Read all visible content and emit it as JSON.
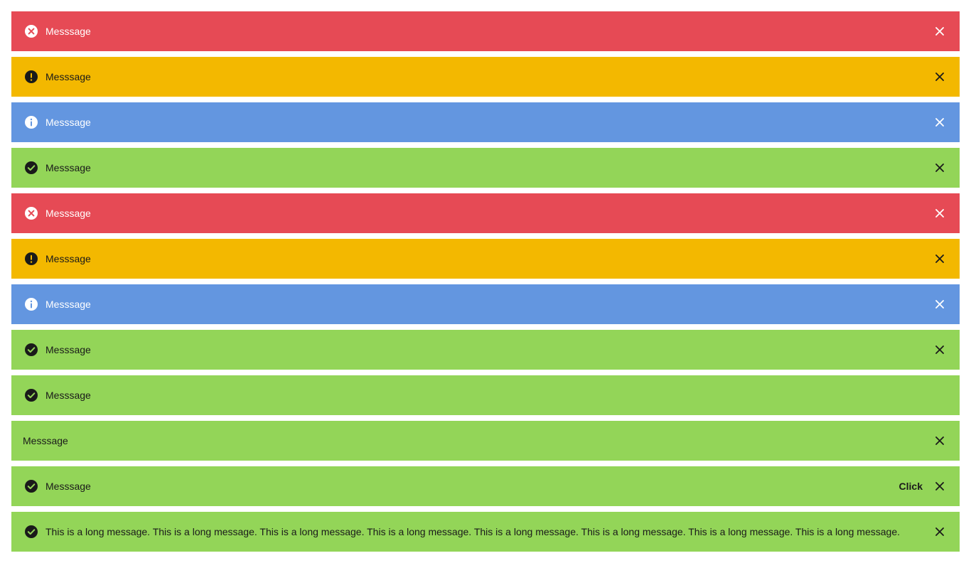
{
  "colors": {
    "danger": "#e64a55",
    "warning": "#f3b800",
    "info": "#6396e0",
    "success": "#93d558"
  },
  "alerts": [
    {
      "variant": "danger",
      "icon": "error-circle-icon",
      "message": "Messsage",
      "closable": true
    },
    {
      "variant": "warning",
      "icon": "exclamation-circle-icon",
      "message": "Messsage",
      "closable": true
    },
    {
      "variant": "info",
      "icon": "info-circle-icon",
      "message": "Messsage",
      "closable": true
    },
    {
      "variant": "success",
      "icon": "check-circle-icon",
      "message": "Messsage",
      "closable": true
    },
    {
      "variant": "danger",
      "icon": "error-circle-icon",
      "message": "Messsage",
      "closable": true
    },
    {
      "variant": "warning",
      "icon": "exclamation-circle-icon",
      "message": "Messsage",
      "closable": true
    },
    {
      "variant": "info",
      "icon": "info-circle-icon",
      "message": "Messsage",
      "closable": true
    },
    {
      "variant": "success",
      "icon": "check-circle-icon",
      "message": "Messsage",
      "closable": true
    },
    {
      "variant": "success",
      "icon": "check-circle-icon",
      "message": "Messsage",
      "closable": false
    },
    {
      "variant": "success",
      "icon": "",
      "message": "Messsage",
      "closable": true
    },
    {
      "variant": "success",
      "icon": "check-circle-icon",
      "message": "Messsage",
      "closable": true,
      "action": "Click"
    },
    {
      "variant": "success",
      "icon": "check-circle-icon",
      "message": "This is a long message. This is a long message. This is a long message. This is a long message. This is a long message. This is a long message. This is a long message. This is a long message.",
      "closable": true
    }
  ]
}
